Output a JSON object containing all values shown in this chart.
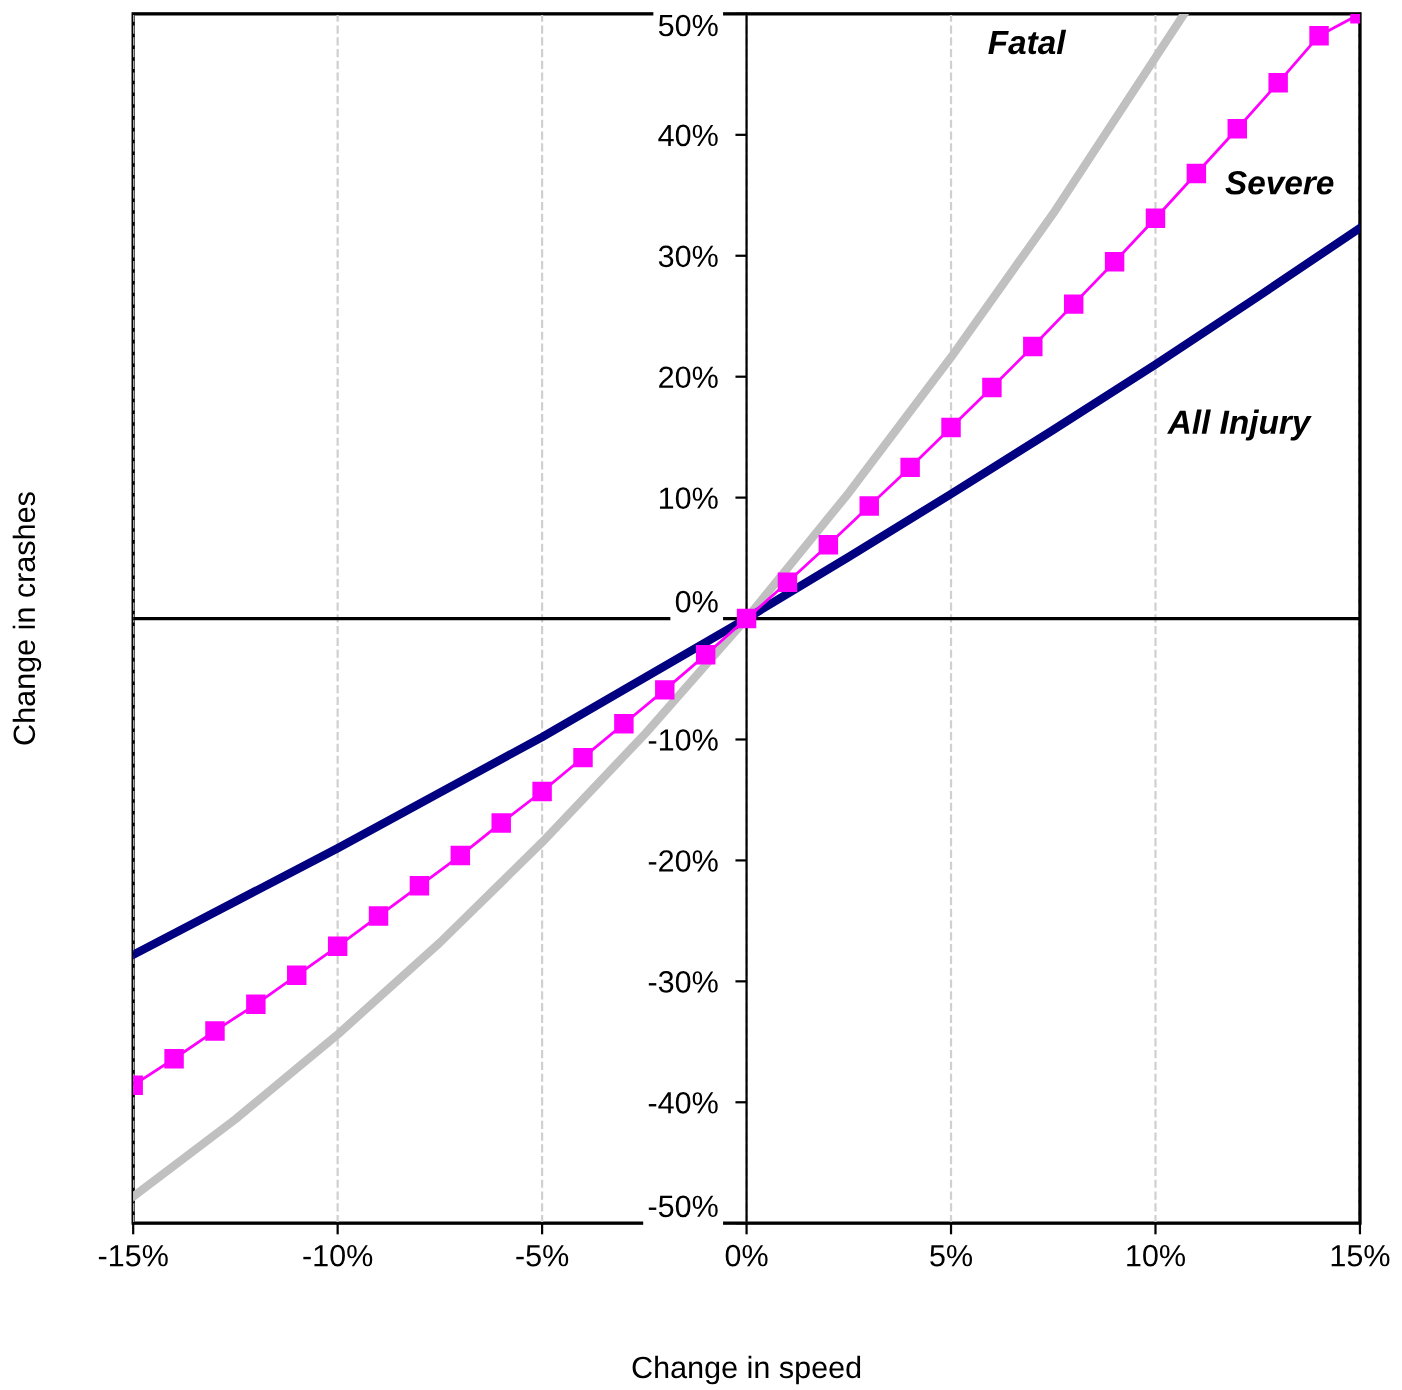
{
  "chart_data": {
    "type": "line",
    "xlabel": "Change in speed",
    "ylabel": "Change in crashes",
    "xlim": [
      -15,
      15
    ],
    "ylim": [
      -50,
      50
    ],
    "xticks": [
      {
        "value": -15,
        "label": "-15%"
      },
      {
        "value": -10,
        "label": "-10%"
      },
      {
        "value": -5,
        "label": "-5%"
      },
      {
        "value": 0,
        "label": "0%"
      },
      {
        "value": 5,
        "label": "5%"
      },
      {
        "value": 10,
        "label": "10%"
      },
      {
        "value": 15,
        "label": "15%"
      }
    ],
    "yticks": [
      {
        "value": -50,
        "label": "-50%"
      },
      {
        "value": -40,
        "label": "-40%"
      },
      {
        "value": -30,
        "label": "-30%"
      },
      {
        "value": -20,
        "label": "-20%"
      },
      {
        "value": -10,
        "label": "-10%"
      },
      {
        "value": 0,
        "label": "0%"
      },
      {
        "value": 10,
        "label": "10%"
      },
      {
        "value": 20,
        "label": "20%"
      },
      {
        "value": 30,
        "label": "30%"
      },
      {
        "value": 40,
        "label": "40%"
      },
      {
        "value": 50,
        "label": "50%"
      }
    ],
    "grid": "x",
    "legend": false,
    "series": [
      {
        "name": "Fatal",
        "color": "#c0c0c0",
        "marker": "none",
        "x": [
          -15,
          -12.5,
          -10,
          -7.5,
          -5,
          -2.5,
          0,
          2.5,
          5,
          7.5,
          10,
          10.7
        ],
        "values": [
          -47.8,
          -41.4,
          -34.4,
          -26.8,
          -18.5,
          -9.6,
          0,
          10.4,
          21.6,
          33.5,
          46.4,
          50
        ]
      },
      {
        "name": "Severe",
        "color": "#ff00ff",
        "marker": "square",
        "x": [
          -15,
          -14,
          -13,
          -12,
          -11,
          -10,
          -9,
          -8,
          -7,
          -6,
          -5,
          -4,
          -3,
          -2,
          -1,
          0,
          1,
          2,
          3,
          4,
          5,
          6,
          7,
          8,
          9,
          10,
          11,
          12,
          13,
          14,
          15
        ],
        "values": [
          -38.6,
          -36.4,
          -34.1,
          -31.9,
          -29.5,
          -27.1,
          -24.6,
          -22.1,
          -19.6,
          -16.9,
          -14.3,
          -11.5,
          -8.7,
          -5.9,
          -3,
          0,
          3,
          6.1,
          9.3,
          12.5,
          15.8,
          19.1,
          22.5,
          26,
          29.5,
          33.1,
          36.8,
          40.5,
          44.3,
          48.2,
          50
        ]
      },
      {
        "name": "All Injury",
        "color": "#000080",
        "marker": "none",
        "x": [
          -15,
          -12.5,
          -10,
          -7.5,
          -5,
          -2.5,
          0,
          2.5,
          5,
          7.5,
          10,
          12.5,
          15
        ],
        "values": [
          -27.8,
          -23.4,
          -19,
          -14.4,
          -9.8,
          -4.9,
          0,
          5.1,
          10.3,
          15.6,
          21,
          26.6,
          32.3
        ]
      }
    ]
  }
}
